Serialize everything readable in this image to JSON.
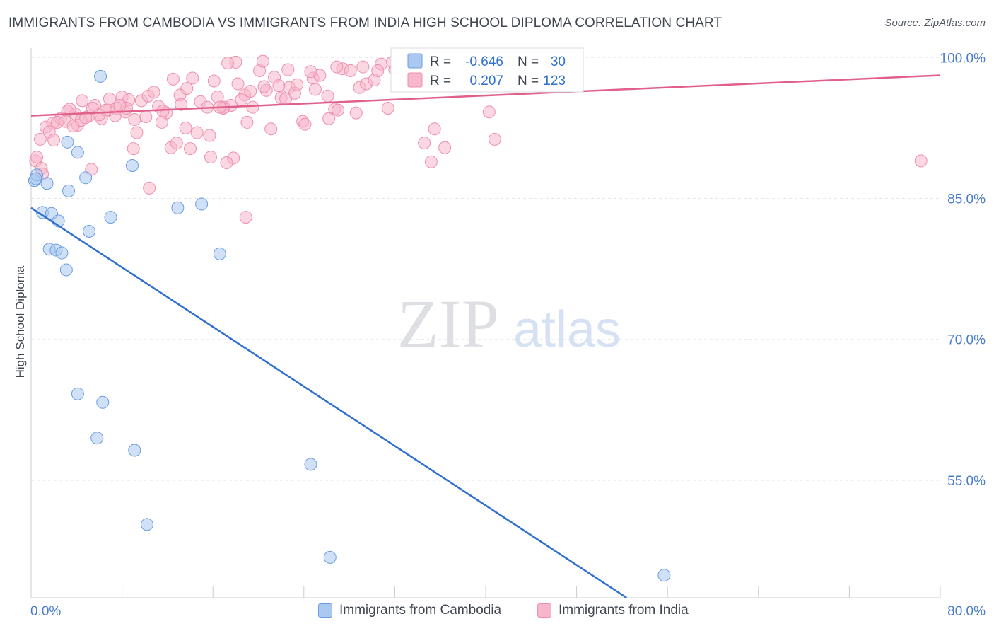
{
  "title": "IMMIGRANTS FROM CAMBODIA VS IMMIGRANTS FROM INDIA HIGH SCHOOL DIPLOMA CORRELATION CHART",
  "source": "Source: ZipAtlas.com",
  "watermark": {
    "zip": "ZIP",
    "atlas": "atlas"
  },
  "colors": {
    "cambodia_fill": "#aac8f0",
    "cambodia_stroke": "#6a9ee0",
    "cambodia_line": "#2e6fd0",
    "india_fill": "#f7b6cb",
    "india_stroke": "#ee8fb0",
    "india_line": "#e0608a",
    "tick_label": "#4a7ccc",
    "grid": "#e3e6ea"
  },
  "legend": {
    "rows": [
      {
        "r_label": "R =",
        "r_value": "-0.646",
        "n_label": "N =",
        "n_value": "30"
      },
      {
        "r_label": "R =",
        "r_value": "0.207",
        "n_label": "N =",
        "n_value": "123"
      }
    ]
  },
  "chart_data": {
    "type": "scatter",
    "title": "IMMIGRANTS FROM CAMBODIA VS IMMIGRANTS FROM INDIA HIGH SCHOOL DIPLOMA CORRELATION CHART",
    "xlabel": "",
    "ylabel": "High School Diploma",
    "xlim": [
      0,
      80
    ],
    "ylim": [
      42.5,
      101
    ],
    "x_tick_labels": [
      "0.0%",
      "80.0%"
    ],
    "y_ticks": [
      55,
      70,
      85,
      100
    ],
    "y_tick_labels": [
      "55.0%",
      "70.0%",
      "85.0%",
      "100.0%"
    ],
    "grid": true,
    "legend_placement": "bottom",
    "series": [
      {
        "name": "Immigrants from Cambodia",
        "R": -0.646,
        "N": 30,
        "trend": {
          "x": [
            0,
            52.4
          ],
          "y": [
            84.0,
            42.5
          ]
        },
        "points": [
          [
            0.3,
            86.9
          ],
          [
            0.5,
            87.5
          ],
          [
            1.0,
            83.5
          ],
          [
            1.8,
            83.4
          ],
          [
            2.4,
            82.6
          ],
          [
            1.4,
            86.6
          ],
          [
            3.3,
            85.8
          ],
          [
            4.1,
            89.9
          ],
          [
            3.2,
            91.0
          ],
          [
            4.8,
            87.2
          ],
          [
            6.1,
            98.0
          ],
          [
            5.1,
            81.5
          ],
          [
            7.0,
            83.0
          ],
          [
            8.9,
            88.5
          ],
          [
            12.9,
            84.0
          ],
          [
            15.0,
            84.4
          ],
          [
            16.6,
            79.1
          ],
          [
            1.6,
            79.6
          ],
          [
            2.2,
            79.5
          ],
          [
            2.7,
            79.2
          ],
          [
            3.1,
            77.4
          ],
          [
            4.1,
            64.2
          ],
          [
            6.3,
            63.3
          ],
          [
            5.8,
            59.5
          ],
          [
            9.1,
            58.2
          ],
          [
            10.2,
            50.3
          ],
          [
            24.6,
            56.7
          ],
          [
            26.3,
            46.8
          ],
          [
            55.7,
            44.9
          ],
          [
            0.4,
            87.1
          ]
        ]
      },
      {
        "name": "Immigrants from India",
        "R": 0.207,
        "N": 123,
        "trend": {
          "x": [
            0,
            80
          ],
          "y": [
            93.8,
            98.1
          ]
        },
        "points": [
          [
            0.4,
            89.0
          ],
          [
            0.9,
            88.2
          ],
          [
            1.3,
            92.6
          ],
          [
            1.9,
            93.0
          ],
          [
            2.6,
            93.5
          ],
          [
            3.2,
            94.3
          ],
          [
            3.9,
            94.0
          ],
          [
            4.5,
            95.4
          ],
          [
            4.1,
            92.8
          ],
          [
            5.1,
            93.8
          ],
          [
            5.6,
            94.9
          ],
          [
            6.2,
            93.5
          ],
          [
            6.8,
            94.4
          ],
          [
            7.5,
            94.6
          ],
          [
            8.0,
            95.8
          ],
          [
            8.3,
            94.2
          ],
          [
            9.1,
            93.4
          ],
          [
            9.7,
            95.4
          ],
          [
            10.3,
            95.9
          ],
          [
            10.8,
            96.3
          ],
          [
            11.2,
            94.8
          ],
          [
            11.9,
            94.1
          ],
          [
            12.5,
            97.7
          ],
          [
            13.1,
            96.0
          ],
          [
            13.7,
            96.7
          ],
          [
            14.2,
            97.8
          ],
          [
            14.9,
            95.3
          ],
          [
            15.5,
            94.7
          ],
          [
            16.1,
            97.5
          ],
          [
            16.4,
            95.8
          ],
          [
            17.0,
            94.7
          ],
          [
            17.6,
            94.9
          ],
          [
            18.2,
            97.2
          ],
          [
            18.8,
            96.0
          ],
          [
            19.5,
            94.7
          ],
          [
            20.1,
            98.6
          ],
          [
            20.7,
            96.5
          ],
          [
            21.4,
            97.9
          ],
          [
            22.0,
            95.7
          ],
          [
            22.7,
            96.8
          ],
          [
            23.2,
            96.2
          ],
          [
            23.9,
            93.2
          ],
          [
            24.8,
            97.8
          ],
          [
            25.4,
            98.1
          ],
          [
            26.1,
            95.9
          ],
          [
            26.7,
            94.5
          ],
          [
            27.4,
            98.8
          ],
          [
            28.1,
            98.6
          ],
          [
            28.9,
            96.8
          ],
          [
            29.5,
            97.2
          ],
          [
            30.2,
            97.6
          ],
          [
            30.8,
            99.3
          ],
          [
            31.4,
            94.6
          ],
          [
            32.0,
            98.7
          ],
          [
            33.1,
            98.9
          ],
          [
            0.8,
            91.3
          ],
          [
            1.6,
            92.1
          ],
          [
            2.3,
            93.1
          ],
          [
            3.0,
            93.2
          ],
          [
            3.7,
            92.7
          ],
          [
            4.4,
            93.3
          ],
          [
            5.4,
            94.6
          ],
          [
            6.0,
            93.9
          ],
          [
            6.6,
            94.4
          ],
          [
            7.4,
            93.8
          ],
          [
            8.6,
            95.5
          ],
          [
            9.3,
            92.0
          ],
          [
            10.1,
            93.7
          ],
          [
            11.5,
            93.1
          ],
          [
            12.3,
            90.4
          ],
          [
            13.6,
            92.5
          ],
          [
            14.6,
            92.0
          ],
          [
            15.7,
            91.7
          ],
          [
            16.9,
            94.6
          ],
          [
            17.8,
            89.3
          ],
          [
            18.5,
            95.5
          ],
          [
            19.0,
            93.1
          ],
          [
            20.5,
            96.9
          ],
          [
            21.1,
            92.4
          ],
          [
            22.4,
            95.6
          ],
          [
            24.1,
            92.9
          ],
          [
            25.0,
            96.6
          ],
          [
            27.0,
            94.4
          ],
          [
            28.6,
            94.1
          ],
          [
            1.0,
            87.6
          ],
          [
            2.0,
            91.2
          ],
          [
            3.4,
            94.5
          ],
          [
            5.3,
            88.1
          ],
          [
            6.9,
            95.6
          ],
          [
            8.4,
            94.6
          ],
          [
            9.0,
            90.3
          ],
          [
            10.4,
            86.1
          ],
          [
            11.6,
            94.3
          ],
          [
            12.8,
            90.9
          ],
          [
            14.0,
            90.3
          ],
          [
            15.8,
            89.4
          ],
          [
            17.2,
            88.8
          ],
          [
            18.9,
            83.0
          ],
          [
            20.4,
            99.6
          ],
          [
            22.6,
            98.7
          ],
          [
            24.6,
            98.5
          ],
          [
            26.9,
            99.0
          ],
          [
            29.2,
            99.0
          ],
          [
            30.5,
            98.6
          ],
          [
            31.8,
            99.5
          ],
          [
            34.6,
            90.9
          ],
          [
            35.5,
            92.4
          ],
          [
            35.2,
            88.9
          ],
          [
            36.4,
            90.4
          ],
          [
            40.3,
            94.2
          ],
          [
            40.8,
            91.3
          ],
          [
            78.3,
            89.0
          ],
          [
            18.0,
            99.5
          ],
          [
            17.3,
            99.4
          ],
          [
            19.3,
            96.4
          ],
          [
            0.5,
            89.4
          ],
          [
            21.8,
            97.0
          ],
          [
            13.2,
            95.0
          ],
          [
            7.8,
            94.9
          ],
          [
            4.8,
            93.6
          ],
          [
            16.6,
            94.7
          ],
          [
            23.4,
            97.1
          ],
          [
            26.2,
            93.5
          ]
        ]
      }
    ]
  },
  "axis": {
    "y_label": "High School Diploma",
    "x_min_label": "0.0%",
    "x_max_label": "80.0%"
  }
}
